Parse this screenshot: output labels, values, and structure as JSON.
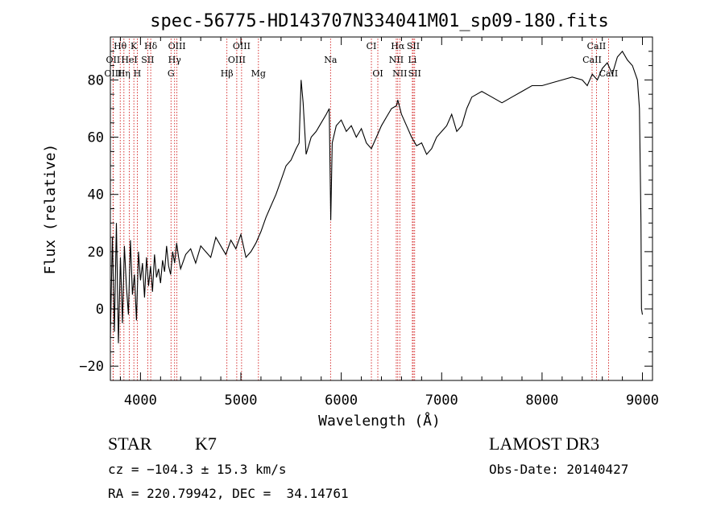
{
  "chart_data": {
    "type": "line",
    "title": "spec-56775-HD143707N334041M01_sp09-180.fits",
    "xlabel": "Wavelength (Å)",
    "ylabel": "Flux (relative)",
    "xlim": [
      3700,
      9100
    ],
    "ylim": [
      -25,
      95
    ],
    "xticks": [
      4000,
      5000,
      6000,
      7000,
      8000,
      9000
    ],
    "yticks": [
      -20,
      0,
      20,
      40,
      60,
      80
    ],
    "grid": false,
    "series": [
      {
        "color": "#000000",
        "x": [
          3700,
          3720,
          3740,
          3760,
          3780,
          3800,
          3820,
          3840,
          3860,
          3880,
          3900,
          3920,
          3940,
          3960,
          3980,
          4000,
          4020,
          4040,
          4060,
          4080,
          4100,
          4120,
          4140,
          4160,
          4180,
          4200,
          4220,
          4240,
          4260,
          4280,
          4300,
          4320,
          4340,
          4360,
          4380,
          4400,
          4450,
          4500,
          4550,
          4600,
          4650,
          4700,
          4750,
          4800,
          4850,
          4900,
          4950,
          5000,
          5050,
          5100,
          5150,
          5200,
          5250,
          5300,
          5350,
          5400,
          5450,
          5500,
          5550,
          5580,
          5600,
          5620,
          5650,
          5700,
          5750,
          5800,
          5850,
          5880,
          5895,
          5910,
          5950,
          6000,
          6050,
          6100,
          6150,
          6200,
          6250,
          6300,
          6350,
          6400,
          6450,
          6500,
          6550,
          6563,
          6600,
          6650,
          6700,
          6750,
          6800,
          6850,
          6900,
          6950,
          7000,
          7050,
          7100,
          7150,
          7200,
          7250,
          7300,
          7400,
          7500,
          7600,
          7700,
          7800,
          7900,
          8000,
          8100,
          8200,
          8300,
          8400,
          8450,
          8500,
          8550,
          8600,
          8650,
          8700,
          8750,
          8800,
          8850,
          8900,
          8950,
          8970,
          8985,
          8990,
          9000
        ],
        "y": [
          -10,
          25,
          -8,
          30,
          -12,
          18,
          -5,
          22,
          8,
          -2,
          24,
          5,
          12,
          -4,
          20,
          10,
          16,
          4,
          18,
          8,
          15,
          6,
          19,
          11,
          14,
          9,
          17,
          13,
          22,
          15,
          12,
          20,
          16,
          23,
          18,
          14,
          19,
          21,
          16,
          22,
          20,
          18,
          25,
          22,
          19,
          24,
          21,
          26,
          18,
          20,
          23,
          27,
          32,
          36,
          40,
          45,
          50,
          52,
          56,
          58,
          80,
          72,
          54,
          60,
          62,
          65,
          68,
          70,
          31,
          58,
          64,
          66,
          62,
          64,
          60,
          63,
          58,
          56,
          60,
          64,
          67,
          70,
          71,
          73,
          68,
          64,
          60,
          57,
          58,
          54,
          56,
          60,
          62,
          64,
          68,
          62,
          64,
          70,
          74,
          76,
          74,
          72,
          74,
          76,
          78,
          78,
          79,
          80,
          81,
          80,
          78,
          82,
          80,
          84,
          86,
          82,
          88,
          90,
          87,
          85,
          80,
          70,
          30,
          0,
          -2
        ]
      }
    ],
    "line_markers": [
      {
        "label": "Hθ",
        "x": 3798,
        "row": 0
      },
      {
        "label": "K",
        "x": 3934,
        "row": 0
      },
      {
        "label": "Hδ",
        "x": 4102,
        "row": 0
      },
      {
        "label": "OIII",
        "x": 4363,
        "row": 0
      },
      {
        "label": "OIII",
        "x": 5007,
        "row": 0
      },
      {
        "label": "CI",
        "x": 6300,
        "row": 0
      },
      {
        "label": "Hα",
        "x": 6563,
        "row": 0
      },
      {
        "label": "SII",
        "x": 6717,
        "row": 0
      },
      {
        "label": "CaII",
        "x": 8542,
        "row": 0
      },
      {
        "label": "OII",
        "x": 3727,
        "row": 1
      },
      {
        "label": "HeI",
        "x": 3889,
        "row": 1
      },
      {
        "label": "SII",
        "x": 4072,
        "row": 1
      },
      {
        "label": "Hγ",
        "x": 4340,
        "row": 1
      },
      {
        "label": "OIII",
        "x": 4959,
        "row": 1
      },
      {
        "label": "Na",
        "x": 5893,
        "row": 1
      },
      {
        "label": "NII",
        "x": 6548,
        "row": 1
      },
      {
        "label": "Li",
        "x": 6708,
        "row": 1
      },
      {
        "label": "CaII",
        "x": 8498,
        "row": 1
      },
      {
        "label": "OIII",
        "x": 3727,
        "row": 2
      },
      {
        "label": "Hη",
        "x": 3835,
        "row": 2
      },
      {
        "label": "H",
        "x": 3968,
        "row": 2
      },
      {
        "label": "G",
        "x": 4304,
        "row": 2
      },
      {
        "label": "Hβ",
        "x": 4861,
        "row": 2
      },
      {
        "label": "Mg",
        "x": 5175,
        "row": 2
      },
      {
        "label": "OI",
        "x": 6364,
        "row": 2
      },
      {
        "label": "NII",
        "x": 6583,
        "row": 2
      },
      {
        "label": "SII",
        "x": 6731,
        "row": 2
      },
      {
        "label": "CaII",
        "x": 8662,
        "row": 2
      }
    ],
    "marker_color": "#cc0000"
  },
  "info": {
    "class_label": "STAR",
    "subclass": "K7",
    "cz": "cz = −104.3 ± 15.3 km/s",
    "coords": "RA = 220.79942, DEC =  34.14761",
    "survey": "LAMOST DR3",
    "obs_date": "Obs-Date: 20140427"
  }
}
